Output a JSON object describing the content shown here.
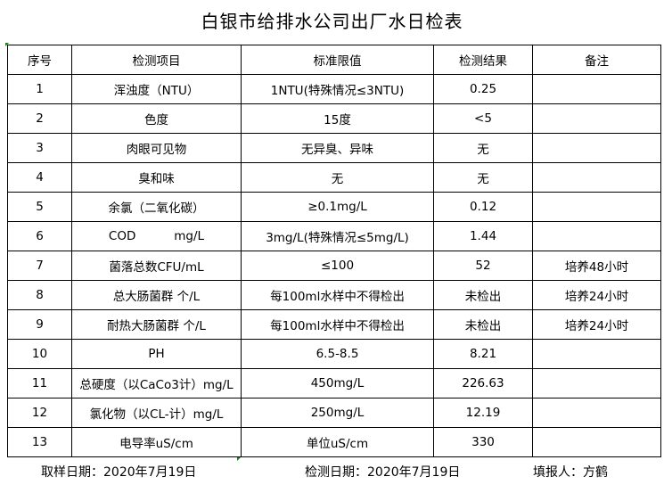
{
  "title": "白银市给排水公司出厂水日检表",
  "headers": [
    "序号",
    "检测项目",
    "标准限值",
    "检测结果",
    "备注"
  ],
  "rows": [
    [
      "1",
      "浑浊度（NTU）",
      "1NTU(特殊情况≤3NTU)",
      "0.25",
      ""
    ],
    [
      "2",
      "色度",
      "15度",
      "<5",
      ""
    ],
    [
      "3",
      "肉眼可见物",
      "无异臭、异味",
      "无",
      ""
    ],
    [
      "4",
      "臭和味",
      "无",
      "无",
      ""
    ],
    [
      "5",
      "余氯（二氧化碳）",
      "≥0.1mg/L",
      "0.12",
      ""
    ],
    [
      "6",
      "COD          mg/L",
      "3mg/L(特殊情况≤5mg/L)",
      "1.44",
      ""
    ],
    [
      "7",
      "菌落总数CFU/mL",
      "≤100",
      "52",
      "培养48小时"
    ],
    [
      "8",
      "总大肠菌群 个/L",
      "每100ml水样中不得检出",
      "未检出",
      "培养24小时"
    ],
    [
      "9",
      "耐热大肠菌群 个/L",
      "每100ml水样中不得检出",
      "未检出",
      "培养24小时"
    ],
    [
      "10",
      "PH",
      "6.5-8.5",
      "8.21",
      ""
    ],
    [
      "11",
      "总硬度（以CaCo3计）mg/L",
      "450mg/L",
      "226.63",
      ""
    ],
    [
      "12",
      "氯化物（以CL-计）mg/L",
      "250mg/L",
      "12.19",
      ""
    ],
    [
      "13",
      "电导率uS/cm",
      "单位uS/cm",
      "330",
      ""
    ]
  ],
  "footer": {
    "sample_date": "取样日期：2020年7月19日",
    "test_date": "检测日期：2020年7月19日",
    "reporter": "填报人：方鹤"
  }
}
